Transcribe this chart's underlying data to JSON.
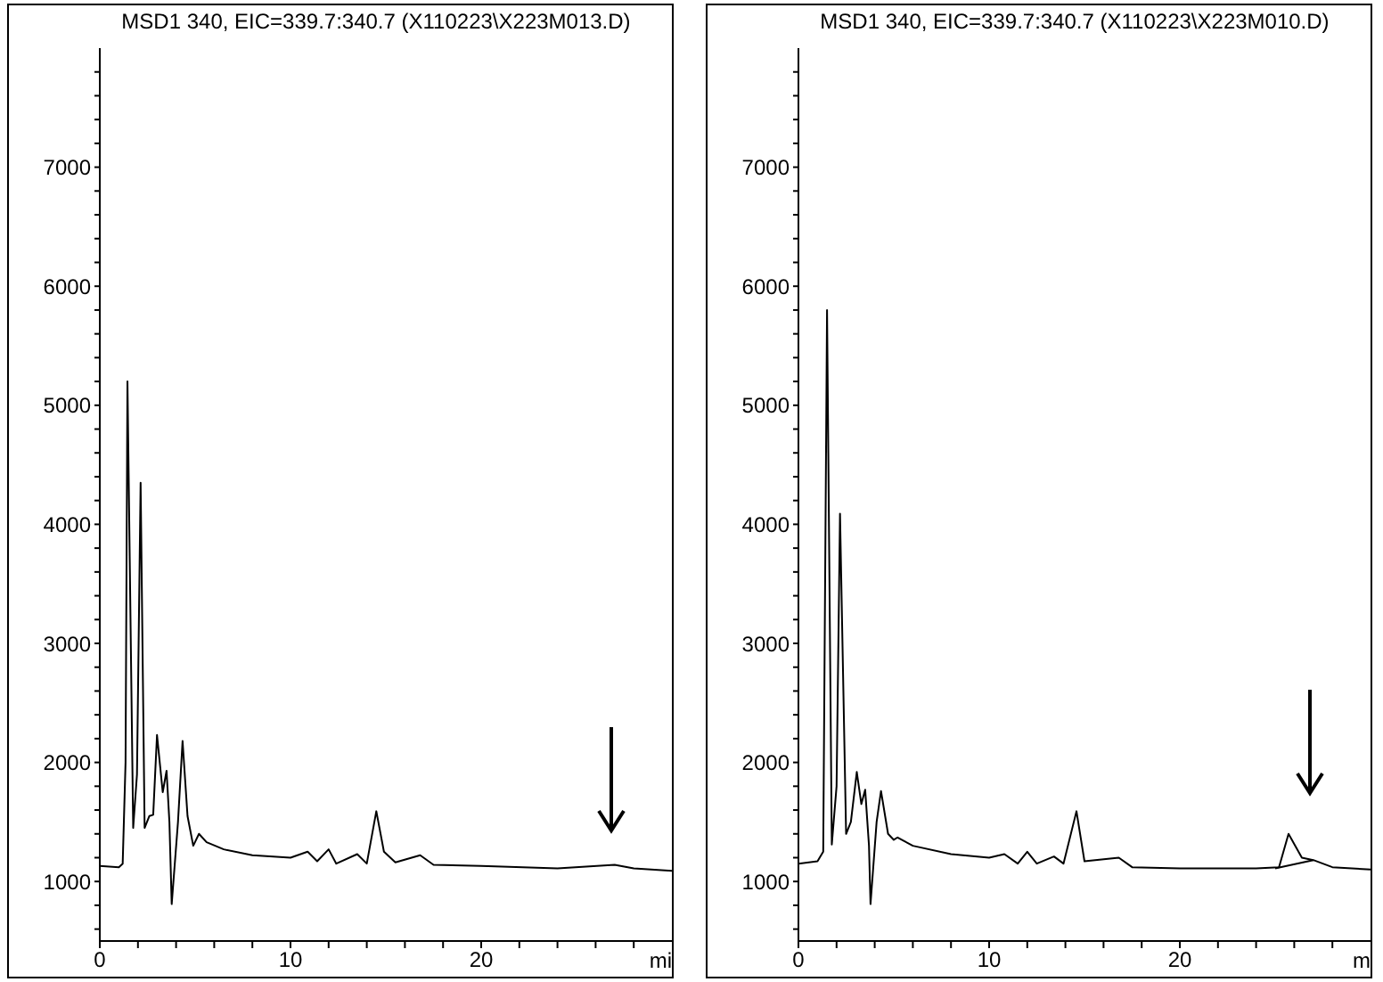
{
  "chart_data": [
    {
      "type": "line",
      "title": "MSD1 340, EIC=339.7:340.7 (X110223\\X223M013.D)",
      "xlabel": "mi",
      "xlim": [
        0,
        30
      ],
      "ylim": [
        500,
        8000
      ],
      "xticks": [
        0,
        {
          "value": 2,
          "label": null
        },
        {
          "value": 4,
          "label": null
        },
        {
          "value": 6,
          "label": null
        },
        {
          "value": 8,
          "label": null
        },
        10,
        {
          "value": 12,
          "label": null
        },
        {
          "value": 14,
          "label": null
        },
        {
          "value": 16,
          "label": null
        },
        {
          "value": 18,
          "label": null
        },
        20,
        {
          "value": 22,
          "label": null
        },
        {
          "value": 24,
          "label": null
        },
        {
          "value": 26,
          "label": null
        },
        {
          "value": 28,
          "label": null
        }
      ],
      "yticks": [
        {
          "value": 600,
          "label": null
        },
        {
          "value": 800,
          "label": null
        },
        1000,
        {
          "value": 1200,
          "label": null
        },
        {
          "value": 1400,
          "label": null
        },
        {
          "value": 1600,
          "label": null
        },
        {
          "value": 1800,
          "label": null
        },
        2000,
        {
          "value": 2200,
          "label": null
        },
        {
          "value": 2400,
          "label": null
        },
        {
          "value": 2600,
          "label": null
        },
        {
          "value": 2800,
          "label": null
        },
        3000,
        {
          "value": 3200,
          "label": null
        },
        {
          "value": 3400,
          "label": null
        },
        {
          "value": 3600,
          "label": null
        },
        {
          "value": 3800,
          "label": null
        },
        4000,
        {
          "value": 4200,
          "label": null
        },
        {
          "value": 4400,
          "label": null
        },
        {
          "value": 4600,
          "label": null
        },
        {
          "value": 4800,
          "label": null
        },
        5000,
        {
          "value": 5200,
          "label": null
        },
        {
          "value": 5400,
          "label": null
        },
        {
          "value": 5600,
          "label": null
        },
        {
          "value": 5800,
          "label": null
        },
        6000,
        {
          "value": 6200,
          "label": null
        },
        {
          "value": 6400,
          "label": null
        },
        {
          "value": 6600,
          "label": null
        },
        {
          "value": 6800,
          "label": null
        },
        7000,
        {
          "value": 7200,
          "label": null
        },
        {
          "value": 7400,
          "label": null
        },
        {
          "value": 7600,
          "label": null
        },
        {
          "value": 7800,
          "label": null
        }
      ],
      "marker": "none",
      "series": [
        {
          "color": "#000000",
          "x": [
            0,
            1.0,
            1.2,
            1.35,
            1.45,
            1.75,
            1.95,
            2.14,
            2.35,
            2.6,
            2.8,
            3.0,
            3.3,
            3.5,
            3.65,
            3.77,
            4.1,
            4.34,
            4.6,
            4.9,
            5.2,
            5.6,
            6.5,
            8,
            10,
            10.9,
            11.4,
            12.0,
            12.4,
            13.5,
            14.0,
            14.5,
            14.9,
            15.5,
            16.8,
            17.5,
            20,
            24,
            27,
            28,
            30
          ],
          "values": [
            1130,
            1120,
            1150,
            2000,
            5200,
            1450,
            1900,
            4350,
            1450,
            1550,
            1560,
            2230,
            1750,
            1930,
            1500,
            810,
            1500,
            2180,
            1550,
            1300,
            1400,
            1330,
            1270,
            1220,
            1200,
            1250,
            1170,
            1270,
            1150,
            1230,
            1150,
            1590,
            1250,
            1160,
            1220,
            1140,
            1130,
            1110,
            1140,
            1110,
            1090
          ]
        }
      ]
    },
    {
      "type": "line",
      "title": "MSD1 340, EIC=339.7:340.7 (X110223\\X223M010.D)",
      "xlabel": "m",
      "xlim": [
        0,
        30
      ],
      "ylim": [
        500,
        8000
      ],
      "xticks": [
        0,
        {
          "value": 2,
          "label": null
        },
        {
          "value": 4,
          "label": null
        },
        {
          "value": 6,
          "label": null
        },
        {
          "value": 8,
          "label": null
        },
        10,
        {
          "value": 12,
          "label": null
        },
        {
          "value": 14,
          "label": null
        },
        {
          "value": 16,
          "label": null
        },
        {
          "value": 18,
          "label": null
        },
        20,
        {
          "value": 22,
          "label": null
        },
        {
          "value": 24,
          "label": null
        },
        {
          "value": 26,
          "label": null
        },
        {
          "value": 28,
          "label": null
        }
      ],
      "yticks": [
        {
          "value": 600,
          "label": null
        },
        {
          "value": 800,
          "label": null
        },
        1000,
        {
          "value": 1200,
          "label": null
        },
        {
          "value": 1400,
          "label": null
        },
        {
          "value": 1600,
          "label": null
        },
        {
          "value": 1800,
          "label": null
        },
        2000,
        {
          "value": 2200,
          "label": null
        },
        {
          "value": 2400,
          "label": null
        },
        {
          "value": 2600,
          "label": null
        },
        {
          "value": 2800,
          "label": null
        },
        3000,
        {
          "value": 3200,
          "label": null
        },
        {
          "value": 3400,
          "label": null
        },
        {
          "value": 3600,
          "label": null
        },
        {
          "value": 3800,
          "label": null
        },
        4000,
        {
          "value": 4200,
          "label": null
        },
        {
          "value": 4400,
          "label": null
        },
        {
          "value": 4600,
          "label": null
        },
        {
          "value": 4800,
          "label": null
        },
        5000,
        {
          "value": 5200,
          "label": null
        },
        {
          "value": 5400,
          "label": null
        },
        {
          "value": 5600,
          "label": null
        },
        {
          "value": 5800,
          "label": null
        },
        6000,
        {
          "value": 6200,
          "label": null
        },
        {
          "value": 6400,
          "label": null
        },
        {
          "value": 6600,
          "label": null
        },
        {
          "value": 6800,
          "label": null
        },
        7000,
        {
          "value": 7200,
          "label": null
        },
        {
          "value": 7400,
          "label": null
        },
        {
          "value": 7600,
          "label": null
        },
        {
          "value": 7800,
          "label": null
        }
      ],
      "marker": "none",
      "series": [
        {
          "color": "#000000",
          "x": [
            0,
            1.0,
            1.3,
            1.5,
            1.75,
            2.0,
            2.18,
            2.5,
            2.75,
            3.06,
            3.3,
            3.5,
            3.7,
            3.78,
            4.1,
            4.33,
            4.7,
            5.0,
            5.2,
            6,
            8,
            10,
            10.8,
            11.5,
            12.0,
            12.5,
            13.4,
            13.9,
            14.58,
            15.0,
            16.8,
            17.5,
            20,
            24,
            25.2,
            25.7,
            26.4,
            27,
            28,
            30
          ],
          "values": [
            1150,
            1170,
            1250,
            5800,
            1310,
            1800,
            4090,
            1400,
            1500,
            1920,
            1650,
            1770,
            1300,
            810,
            1500,
            1760,
            1400,
            1350,
            1370,
            1300,
            1230,
            1200,
            1230,
            1150,
            1250,
            1150,
            1210,
            1150,
            1590,
            1170,
            1200,
            1120,
            1110,
            1110,
            1120,
            1400,
            1200,
            1180,
            1120,
            1100
          ]
        },
        {
          "color": "#000000",
          "x": [
            25.0,
            27.0
          ],
          "values": [
            1110,
            1180
          ]
        }
      ]
    }
  ]
}
